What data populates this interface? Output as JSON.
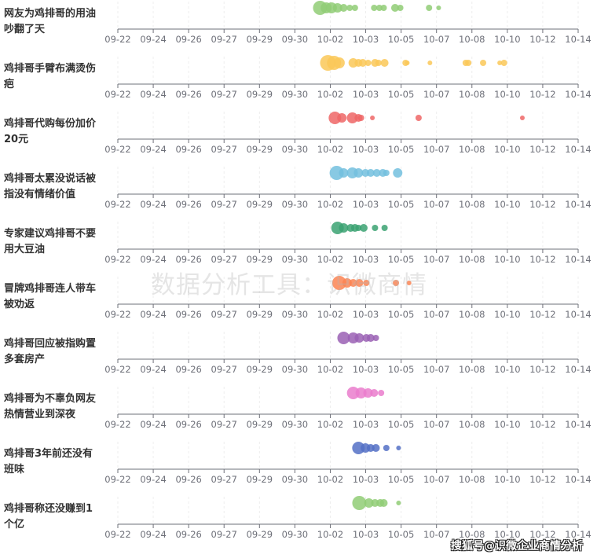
{
  "chart_data": {
    "type": "scatter",
    "subtype": "single-axis bubble strips",
    "x_axis": {
      "type": "time",
      "range": [
        "09-22 00:00",
        "10-14 00:00"
      ],
      "tick_labels": [
        "09-22",
        "09-24",
        "09-26",
        "09-27",
        "09-29",
        "09-30",
        "10-02",
        "10-03",
        "10-05",
        "10-07",
        "10-08",
        "10-10",
        "10-12",
        "10-14"
      ],
      "grid": "vertical dashed"
    },
    "series": [
      {
        "name": "网友为鸡排哥的用油吵翻了天",
        "color": "#91cc75",
        "points": [
          [
            "10-01 16:00",
            81
          ],
          [
            "10-01 23:00",
            49
          ],
          [
            "10-02 05:00",
            49
          ],
          [
            "10-02 12:00",
            36
          ],
          [
            "10-02 19:00",
            25
          ],
          [
            "10-03 02:00",
            16
          ],
          [
            "10-03 08:00",
            16
          ],
          [
            "10-04 06:00",
            16
          ],
          [
            "10-04 12:00",
            16
          ],
          [
            "10-04 17:00",
            16
          ],
          [
            "10-05 06:00",
            25
          ],
          [
            "10-05 12:00",
            16
          ],
          [
            "10-06 21:00",
            16
          ],
          [
            "10-07 08:00",
            9
          ]
        ]
      },
      {
        "name": "鸡排哥手臂布满烫伤疤",
        "color": "#fac858",
        "points": [
          [
            "10-02 01:00",
            100
          ],
          [
            "10-02 08:00",
            81
          ],
          [
            "10-02 14:00",
            49
          ],
          [
            "10-03 06:00",
            36
          ],
          [
            "10-03 12:00",
            25
          ],
          [
            "10-03 17:00",
            25
          ],
          [
            "10-03 23:00",
            16
          ],
          [
            "10-04 07:00",
            25
          ],
          [
            "10-04 11:00",
            16
          ],
          [
            "10-04 18:00",
            25
          ],
          [
            "10-05 18:00",
            16
          ],
          [
            "10-05 20:00",
            9
          ],
          [
            "10-06 22:00",
            9
          ],
          [
            "10-08 15:00",
            16
          ],
          [
            "10-08 18:00",
            16
          ],
          [
            "10-09 11:00",
            16
          ],
          [
            "10-10 06:00",
            9
          ],
          [
            "10-10 11:00",
            16
          ]
        ]
      },
      {
        "name": "鸡排哥代购每份加价20元",
        "color": "#ee6666",
        "points": [
          [
            "10-02 09:00",
            64
          ],
          [
            "10-02 17:00",
            36
          ],
          [
            "10-03 05:00",
            49
          ],
          [
            "10-03 12:00",
            25
          ],
          [
            "10-03 15:00",
            16
          ],
          [
            "10-04 04:00",
            9
          ],
          [
            "10-06 09:00",
            16
          ],
          [
            "10-11 08:00",
            9
          ]
        ]
      },
      {
        "name": "鸡排哥太累没说话被指没有情绪价值",
        "color": "#73c0de",
        "points": [
          [
            "10-02 11:00",
            81
          ],
          [
            "10-02 19:00",
            36
          ],
          [
            "10-03 05:00",
            49
          ],
          [
            "10-03 12:00",
            36
          ],
          [
            "10-03 20:00",
            25
          ],
          [
            "10-04 02:00",
            25
          ],
          [
            "10-04 09:00",
            25
          ],
          [
            "10-04 16:00",
            25
          ],
          [
            "10-04 20:00",
            16
          ],
          [
            "10-05 09:00",
            36
          ]
        ]
      },
      {
        "name": "专家建议鸡排哥不要用大豆油",
        "color": "#3ba272",
        "points": [
          [
            "10-02 12:00",
            64
          ],
          [
            "10-02 19:00",
            36
          ],
          [
            "10-03 03:00",
            25
          ],
          [
            "10-03 08:00",
            25
          ],
          [
            "10-03 12:00",
            16
          ],
          [
            "10-03 18:00",
            25
          ],
          [
            "10-04 07:00",
            16
          ],
          [
            "10-04 18:00",
            16
          ]
        ]
      },
      {
        "name": "冒牌鸡排哥连人带车被劝返",
        "color": "#fc8452",
        "points": [
          [
            "10-02 14:00",
            81
          ],
          [
            "10-02 23:00",
            36
          ],
          [
            "10-03 06:00",
            25
          ],
          [
            "10-03 13:00",
            25
          ],
          [
            "10-03 21:00",
            16
          ],
          [
            "10-05 07:00",
            16
          ],
          [
            "10-05 22:00",
            9
          ]
        ]
      },
      {
        "name": "鸡排哥回应被指购置多套房产",
        "color": "#9a60b4",
        "points": [
          [
            "10-02 19:00",
            64
          ],
          [
            "10-03 06:00",
            49
          ],
          [
            "10-03 13:00",
            36
          ],
          [
            "10-03 21:00",
            25
          ],
          [
            "10-04 02:00",
            25
          ],
          [
            "10-04 08:00",
            16
          ]
        ]
      },
      {
        "name": "鸡排哥为不辜负网友热情营业到深夜",
        "color": "#ea7ccc",
        "points": [
          [
            "10-03 06:00",
            64
          ],
          [
            "10-03 15:00",
            49
          ],
          [
            "10-03 23:00",
            36
          ],
          [
            "10-04 06:00",
            25
          ],
          [
            "10-04 14:00",
            16
          ]
        ]
      },
      {
        "name": "鸡排哥3年前还没有班味",
        "color": "#5470c6",
        "points": [
          [
            "10-03 12:00",
            64
          ],
          [
            "10-03 20:00",
            36
          ],
          [
            "10-04 02:00",
            25
          ],
          [
            "10-04 08:00",
            25
          ],
          [
            "10-04 20:00",
            16
          ],
          [
            "10-05 10:00",
            9
          ]
        ]
      },
      {
        "name": "鸡排哥称还没赚到1个亿",
        "color": "#91cc75",
        "points": [
          [
            "10-03 13:00",
            81
          ],
          [
            "10-04 00:00",
            36
          ],
          [
            "10-04 07:00",
            25
          ],
          [
            "10-04 13:00",
            25
          ],
          [
            "10-04 17:00",
            25
          ],
          [
            "10-05 10:00",
            9
          ]
        ]
      }
    ]
  },
  "watermark": "数据分析工具：识微商情",
  "credit": "搜狐号@识微企业商情分析"
}
